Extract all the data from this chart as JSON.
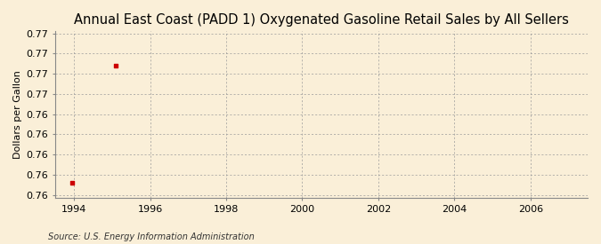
{
  "title": "Annual East Coast (PADD 1) Oxygenated Gasoline Retail Sales by All Sellers",
  "ylabel": "Dollars per Gallon",
  "source": "Source: U.S. Energy Information Administration",
  "x_data": [
    1993.95,
    1995.1
  ],
  "y_data": [
    0.7572,
    0.7688
  ],
  "point_color": "#cc0000",
  "background_color": "#faefd8",
  "plot_bg_color": "#faefd8",
  "grid_color": "#999999",
  "xlim": [
    1993.5,
    2007.5
  ],
  "ylim": [
    0.7557,
    0.7722
  ],
  "xticks": [
    1994,
    1996,
    1998,
    2000,
    2002,
    2004,
    2006
  ],
  "title_fontsize": 10.5,
  "axis_fontsize": 8,
  "tick_fontsize": 8,
  "source_fontsize": 7
}
